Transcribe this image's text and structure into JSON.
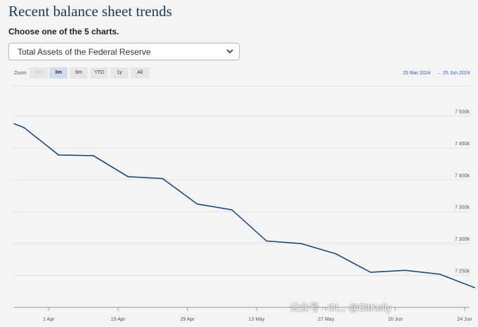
{
  "header": {
    "title": "Recent balance sheet trends",
    "subtitle": "Choose one of the 5 charts.",
    "select_value": "Total Assets of the Federal Reserve"
  },
  "zoom": {
    "label": "Zoom",
    "buttons": [
      {
        "label": "1m",
        "state": "disabled"
      },
      {
        "label": "3m",
        "state": "active"
      },
      {
        "label": "6m",
        "state": "normal"
      },
      {
        "label": "YTD",
        "state": "normal"
      },
      {
        "label": "1y",
        "state": "normal"
      },
      {
        "label": "All",
        "state": "normal"
      }
    ],
    "range_from": "25 Mar 2024",
    "range_separator": "→",
    "range_to": "25 Jun 2024"
  },
  "watermark": "公众号 · Ol... @BitKelly",
  "colors": {
    "line": "#0f3f7a",
    "grid": "#e2e2e2",
    "title": "#1a3a5c",
    "range": "#3a5ccc"
  },
  "chart_data": {
    "type": "line",
    "title": "",
    "xlabel": "",
    "ylabel": "",
    "x_ticks": [
      "1 Apr",
      "15 Apr",
      "29 Apr",
      "13 May",
      "27 May",
      "10 Jun",
      "24 Jun"
    ],
    "y_ticks": [
      "7 250k",
      "7 300k",
      "7 350k",
      "7 400k",
      "7 450k",
      "7 500k"
    ],
    "ylim": [
      7200000,
      7550000
    ],
    "xlim": [
      "2024-03-25",
      "2024-06-25"
    ],
    "grid": "horizontal",
    "series": [
      {
        "points": [
          {
            "x": "2024-03-25",
            "y": 7488000
          },
          {
            "x": "2024-03-27",
            "y": 7482000
          },
          {
            "x": "2024-04-03",
            "y": 7439000
          },
          {
            "x": "2024-04-10",
            "y": 7438000
          },
          {
            "x": "2024-04-17",
            "y": 7405000
          },
          {
            "x": "2024-04-24",
            "y": 7402000
          },
          {
            "x": "2024-05-01",
            "y": 7362000
          },
          {
            "x": "2024-05-08",
            "y": 7353000
          },
          {
            "x": "2024-05-15",
            "y": 7304000
          },
          {
            "x": "2024-05-22",
            "y": 7300000
          },
          {
            "x": "2024-05-29",
            "y": 7284000
          },
          {
            "x": "2024-06-05",
            "y": 7255000
          },
          {
            "x": "2024-06-12",
            "y": 7258000
          },
          {
            "x": "2024-06-19",
            "y": 7252000
          },
          {
            "x": "2024-06-26",
            "y": 7231000
          }
        ]
      }
    ]
  }
}
